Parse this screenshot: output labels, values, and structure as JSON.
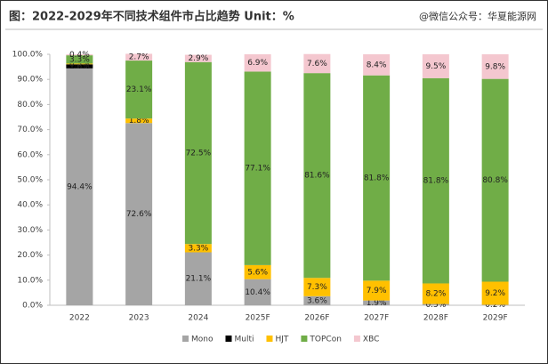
{
  "chart_data": {
    "type": "stacked_bar",
    "title": "图：2022-2029年不同技术组件市占比趋势 Unit：%",
    "subtitle": "@微信公众号：华夏能源网",
    "categories": [
      "2022",
      "2023",
      "2024",
      "2025F",
      "2026F",
      "2027F",
      "2028F",
      "2029F"
    ],
    "series": [
      {
        "name": "Mono",
        "color": "#a5a5a5",
        "values": [
          94.4,
          72.6,
          21.1,
          10.4,
          3.6,
          1.9,
          0.5,
          0.2
        ],
        "value_labels": [
          "94.4%",
          "72.6%",
          "21.1%",
          "10.4%",
          "3.6%",
          "1.9%",
          "0.5%",
          "0.2%"
        ]
      },
      {
        "name": "Multi",
        "color": "#000000",
        "values": [
          1.6,
          null,
          null,
          null,
          null,
          null,
          null,
          null
        ],
        "value_labels": [
          "1.6%",
          null,
          null,
          null,
          null,
          null,
          null,
          null
        ]
      },
      {
        "name": "HJT",
        "color": "#ffc000",
        "values": [
          0.3,
          1.8,
          3.3,
          5.6,
          7.3,
          7.9,
          8.2,
          9.2
        ],
        "value_labels": [
          "0.3%",
          "1.8%",
          "3.3%",
          "5.6%",
          "7.3%",
          "7.9%",
          "8.2%",
          "9.2%"
        ]
      },
      {
        "name": "TOPCon",
        "color": "#70ad47",
        "values": [
          3.3,
          23.1,
          72.5,
          77.1,
          81.6,
          81.8,
          81.8,
          80.8
        ],
        "value_labels": [
          "3.3%",
          "23.1%",
          "72.5%",
          "77.1%",
          "81.6%",
          "81.8%",
          "81.8%",
          "80.8%"
        ]
      },
      {
        "name": "XBC",
        "color": "#f4c7cf",
        "values": [
          0.4,
          2.7,
          2.9,
          6.9,
          7.6,
          8.4,
          9.5,
          9.8
        ],
        "value_labels": [
          "0.4%",
          "2.7%",
          "2.9%",
          "6.9%",
          "7.6%",
          "8.4%",
          "9.5%",
          "9.8%"
        ]
      }
    ],
    "ylim": [
      0,
      100
    ],
    "yticks": [
      {
        "value": 0,
        "label": "0.0%"
      },
      {
        "value": 10,
        "label": "10.0%"
      },
      {
        "value": 20,
        "label": "20.0%"
      },
      {
        "value": 30,
        "label": "30.0%"
      },
      {
        "value": 40,
        "label": "40.0%"
      },
      {
        "value": 50,
        "label": "50.0%"
      },
      {
        "value": 60,
        "label": "60.0%"
      },
      {
        "value": 70,
        "label": "70.0%"
      },
      {
        "value": 80,
        "label": "80.0%"
      },
      {
        "value": 90,
        "label": "90.0%"
      },
      {
        "value": 100,
        "label": "100.0%"
      }
    ]
  }
}
